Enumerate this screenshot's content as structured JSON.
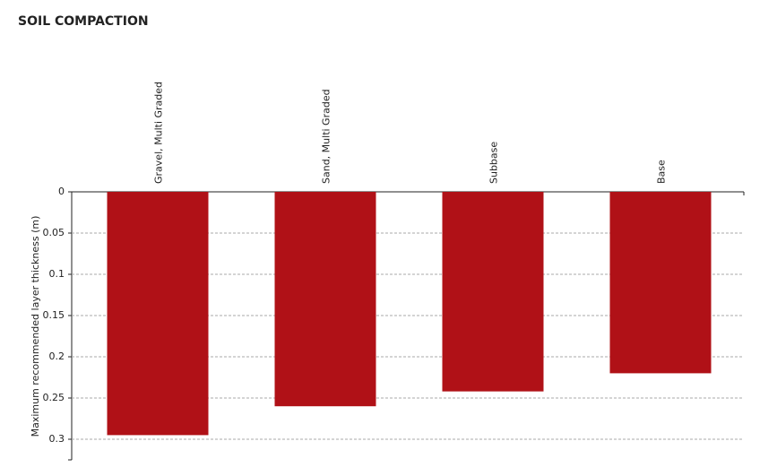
{
  "chart_data": {
    "type": "bar",
    "title": "SOIL COMPACTION",
    "y_label": "Maximum recommended layer thickness (m)",
    "categories": [
      "Gravel, Multi Graded",
      "Sand, Multi Graded",
      "Subbase",
      "Base"
    ],
    "values": [
      0.295,
      0.26,
      0.242,
      0.22
    ],
    "color": "#b01117",
    "ylim": [
      0,
      0.325
    ],
    "yticks": [
      0,
      0.05,
      0.1,
      0.15,
      0.2,
      0.25,
      0.3
    ],
    "y_reversed": true,
    "grid": true
  }
}
